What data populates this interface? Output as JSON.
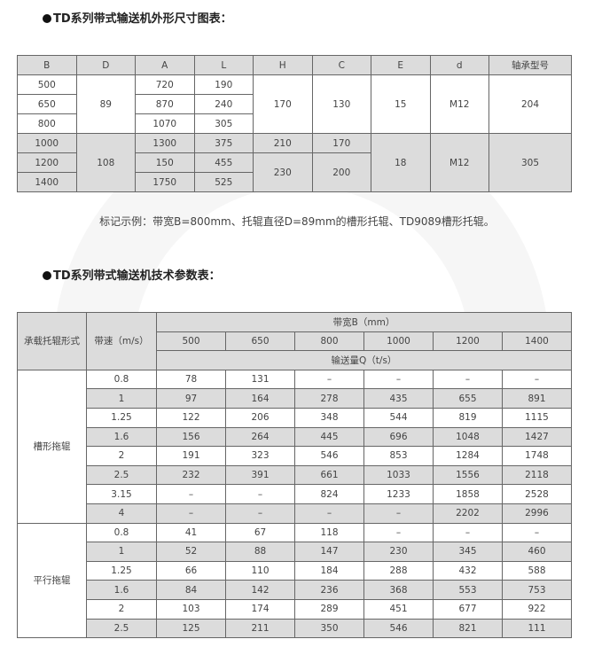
{
  "dimension_section": {
    "title": "TD系列带式输送机外形尺寸图表：",
    "headers": [
      "B",
      "D",
      "A",
      "L",
      "H",
      "C",
      "E",
      "d",
      "轴承型号"
    ],
    "group1": {
      "B": [
        "500",
        "650",
        "800"
      ],
      "D": "89",
      "A": [
        "720",
        "870",
        "1070"
      ],
      "L": [
        "190",
        "240",
        "305"
      ],
      "H": "170",
      "C": "130",
      "E": "15",
      "d": "M12",
      "bearing": "204"
    },
    "group2": {
      "B": [
        "1000",
        "1200",
        "1400"
      ],
      "D": "108",
      "A": [
        "1300",
        "150",
        "1750"
      ],
      "L": [
        "375",
        "455",
        "525"
      ],
      "H": [
        "210",
        "230"
      ],
      "C": [
        "170",
        "200"
      ],
      "E": "18",
      "d": "M12",
      "bearing": "305"
    },
    "caption": "标记示例：带宽B=800mm、托辊直径D=89mm的槽形托辊、TD9089槽形托辊。"
  },
  "param_section": {
    "title": "TD系列带式输送机技术参数表：",
    "h_type": "承载托辊形式",
    "h_speed": "带速（m/s）",
    "h_width": "带宽B（mm）",
    "widths": [
      "500",
      "650",
      "800",
      "1000",
      "1200",
      "1400"
    ],
    "h_flow": "输送量Q（t/s）",
    "groups": [
      {
        "name": "槽形拖辊",
        "rows": [
          [
            "0.8",
            "78",
            "131",
            "–",
            "–",
            "–",
            "–"
          ],
          [
            "1",
            "97",
            "164",
            "278",
            "435",
            "655",
            "891"
          ],
          [
            "1.25",
            "122",
            "206",
            "348",
            "544",
            "819",
            "1115"
          ],
          [
            "1.6",
            "156",
            "264",
            "445",
            "696",
            "1048",
            "1427"
          ],
          [
            "2",
            "191",
            "323",
            "546",
            "853",
            "1284",
            "1748"
          ],
          [
            "2.5",
            "232",
            "391",
            "661",
            "1033",
            "1556",
            "2118"
          ],
          [
            "3.15",
            "–",
            "–",
            "824",
            "1233",
            "1858",
            "2528"
          ],
          [
            "4",
            "–",
            "–",
            "–",
            "–",
            "2202",
            "2996"
          ]
        ]
      },
      {
        "name": "平行拖辊",
        "rows": [
          [
            "0.8",
            "41",
            "67",
            "118",
            "–",
            "–",
            "–"
          ],
          [
            "1",
            "52",
            "88",
            "147",
            "230",
            "345",
            "460"
          ],
          [
            "1.25",
            "66",
            "110",
            "184",
            "288",
            "432",
            "588"
          ],
          [
            "1.6",
            "84",
            "142",
            "236",
            "368",
            "553",
            "753"
          ],
          [
            "2",
            "103",
            "174",
            "289",
            "451",
            "677",
            "922"
          ],
          [
            "2.5",
            "125",
            "211",
            "350",
            "546",
            "821",
            "111"
          ]
        ]
      }
    ]
  }
}
